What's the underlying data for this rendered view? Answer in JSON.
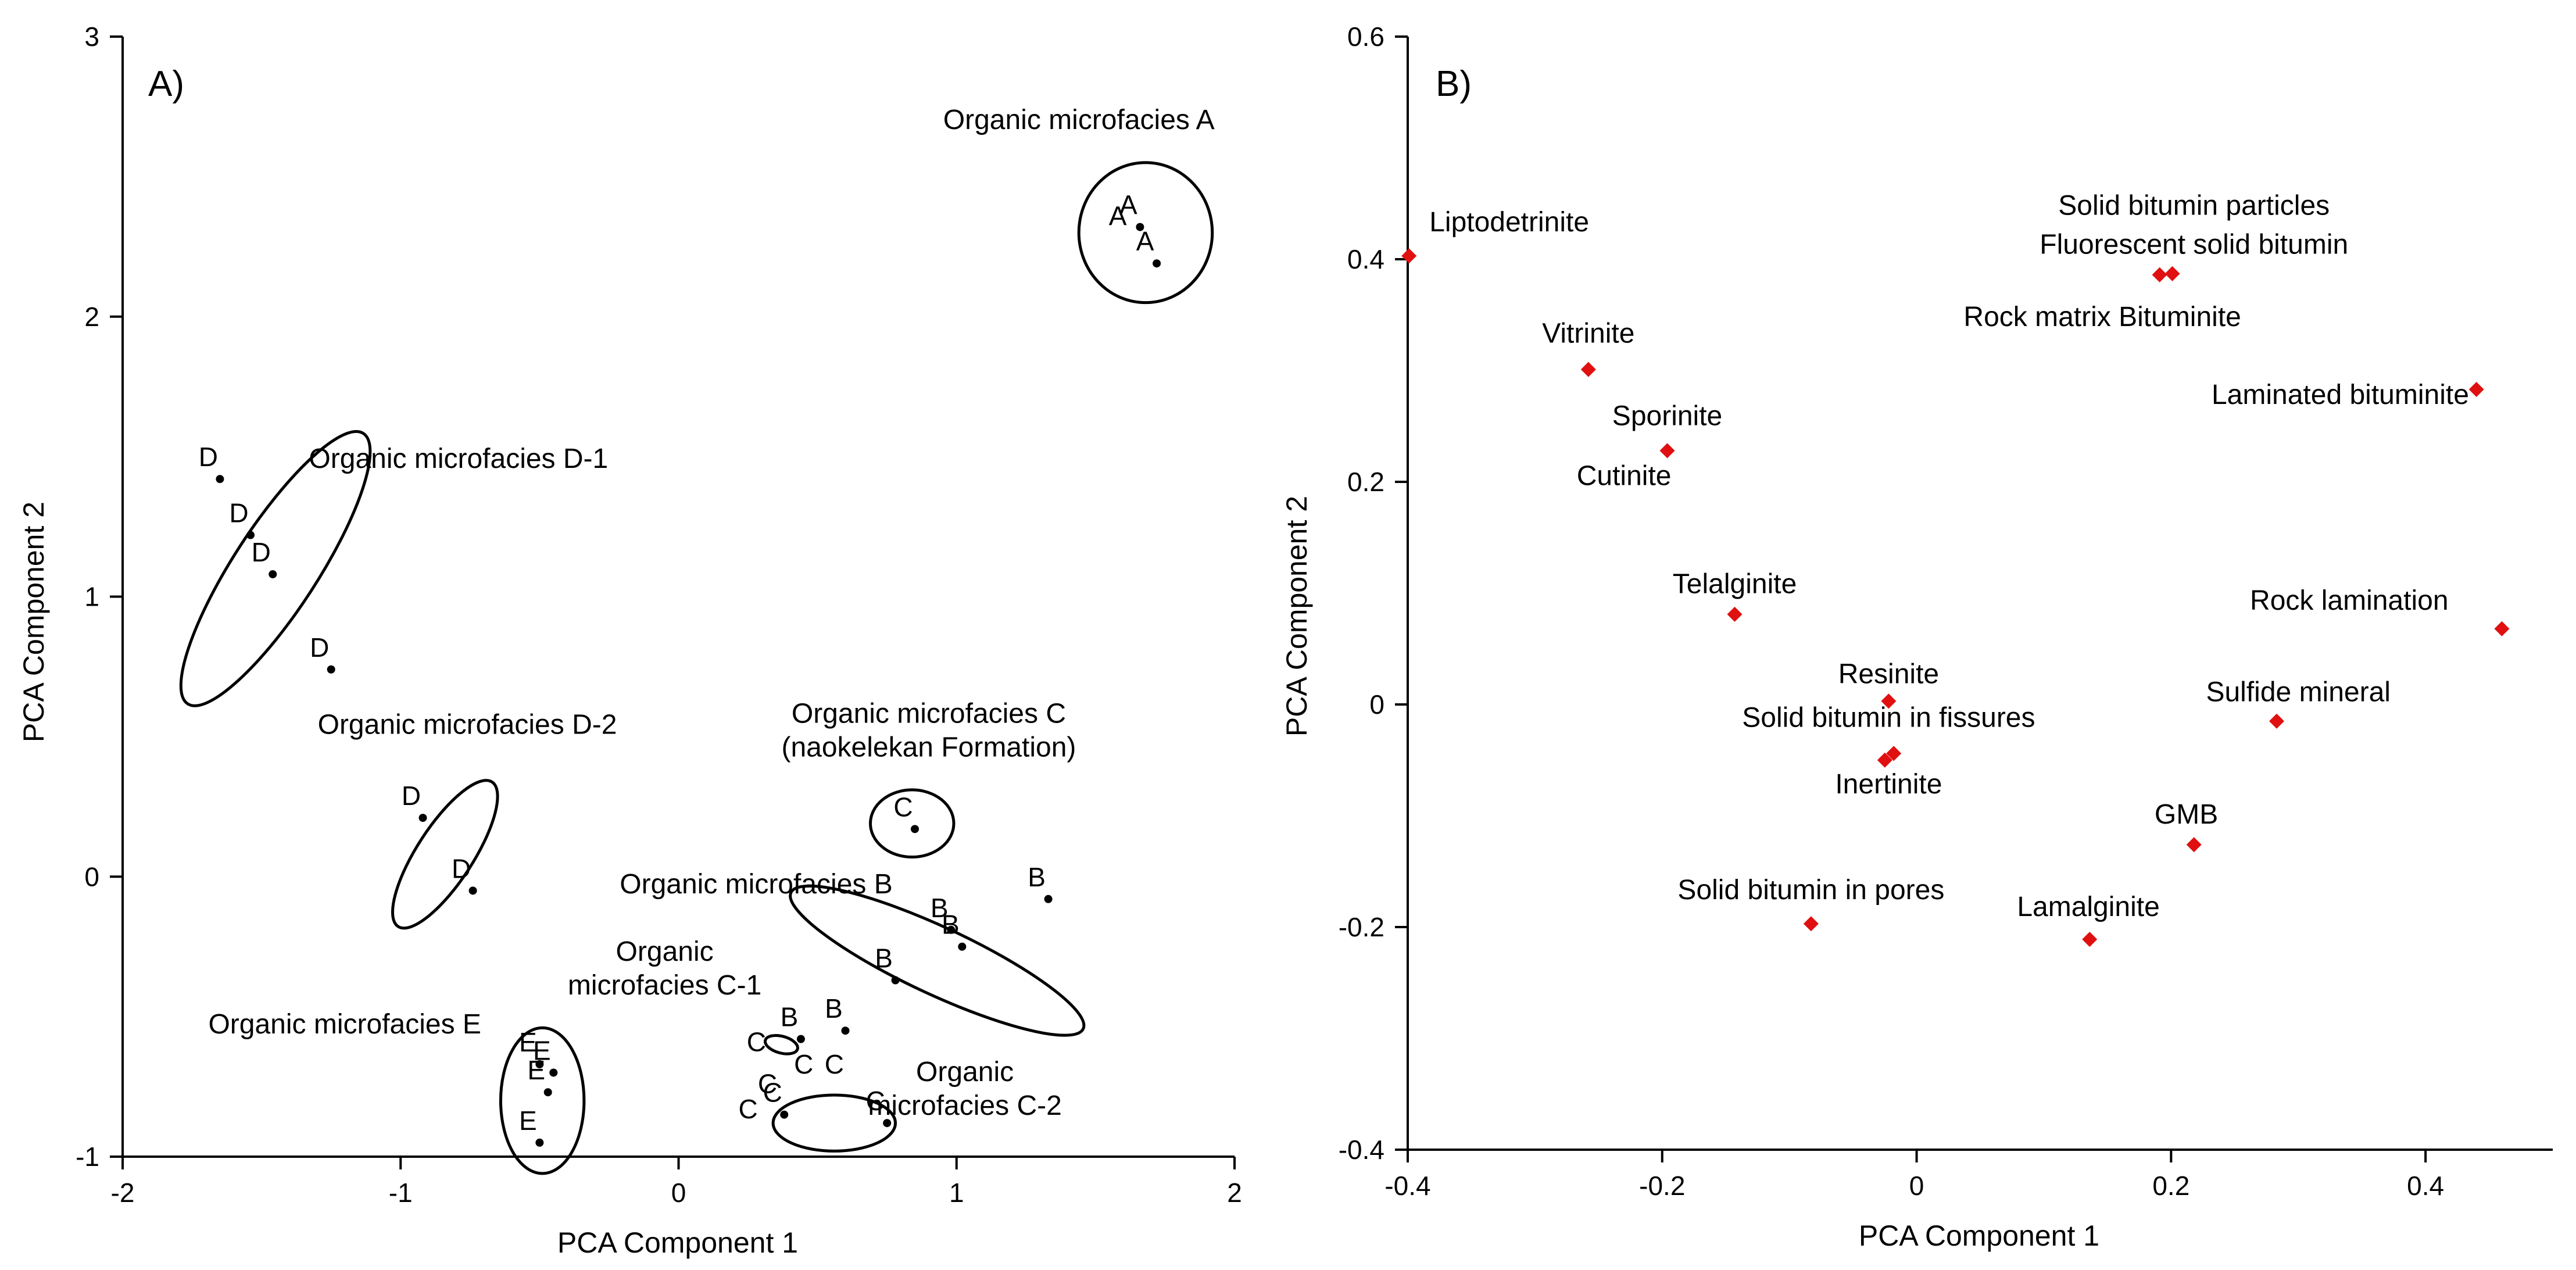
{
  "chart_data": [
    {
      "type": "scatter",
      "panel_label": "A)",
      "xlabel": "PCA Component 1",
      "ylabel": "PCA Component 2",
      "xlim": [
        -2,
        2
      ],
      "ylim": [
        -1,
        3
      ],
      "xticks": [
        "-2",
        "-1",
        "0",
        "1",
        "2"
      ],
      "yticks": [
        "-1",
        "0",
        "1",
        "2",
        "3"
      ],
      "grid": false,
      "point_color": "#000000",
      "points": [
        {
          "label": "A",
          "x": 1.66,
          "y": 2.32
        },
        {
          "label": "A",
          "x": 1.72,
          "y": 2.19
        },
        {
          "label": "D",
          "x": -1.65,
          "y": 1.42
        },
        {
          "label": "D",
          "x": -1.54,
          "y": 1.22
        },
        {
          "label": "D",
          "x": -1.46,
          "y": 1.08
        },
        {
          "label": "D",
          "x": -1.25,
          "y": 0.74
        },
        {
          "label": "D",
          "x": -0.92,
          "y": 0.21
        },
        {
          "label": "D",
          "x": -0.74,
          "y": -0.05
        },
        {
          "label": "C",
          "x": 0.85,
          "y": 0.17
        },
        {
          "label": "B",
          "x": 1.33,
          "y": -0.08
        },
        {
          "label": "B",
          "x": 0.98,
          "y": -0.19
        },
        {
          "label": "B",
          "x": 1.02,
          "y": -0.25
        },
        {
          "label": "B",
          "x": 0.78,
          "y": -0.37
        },
        {
          "label": "B",
          "x": 0.6,
          "y": -0.55
        },
        {
          "label": "B",
          "x": 0.44,
          "y": -0.58
        },
        {
          "label": "E",
          "x": -0.5,
          "y": -0.67
        },
        {
          "label": "E",
          "x": -0.45,
          "y": -0.7
        },
        {
          "label": "E",
          "x": -0.47,
          "y": -0.77
        },
        {
          "label": "E",
          "x": -0.5,
          "y": -0.95
        },
        {
          "label": "C",
          "x": 0.38,
          "y": -0.85
        },
        {
          "label": "C",
          "x": 0.75,
          "y": -0.88
        }
      ],
      "extra_labels": [
        {
          "text": "A",
          "x": 1.58,
          "y": 2.36
        },
        {
          "text": "C",
          "x": 0.28,
          "y": -0.59
        },
        {
          "text": "C",
          "x": 0.45,
          "y": -0.67
        },
        {
          "text": "C",
          "x": 0.56,
          "y": -0.67
        },
        {
          "text": "C",
          "x": 0.32,
          "y": -0.74
        },
        {
          "text": "C",
          "x": 0.25,
          "y": -0.83
        }
      ],
      "groups": [
        {
          "name": "Organic microfacies A",
          "cx": 1.68,
          "cy": 2.3,
          "rx": 0.24,
          "ry": 0.25,
          "angle": 0
        },
        {
          "name": "Organic microfacies D-1",
          "cx": -1.45,
          "cy": 1.1,
          "rx": 0.58,
          "ry": 0.15,
          "angle": 57
        },
        {
          "name": "Organic microfacies D-2",
          "cx": -0.84,
          "cy": 0.08,
          "rx": 0.31,
          "ry": 0.1,
          "angle": 57
        },
        {
          "name": "Organic microfacies C",
          "cx": 0.84,
          "cy": 0.19,
          "rx": 0.15,
          "ry": 0.12,
          "angle": 0
        },
        {
          "name": "Organic microfacies B",
          "cx": 0.93,
          "cy": -0.3,
          "rx": 0.58,
          "ry": 0.12,
          "angle": -25
        },
        {
          "name": "Organic microfacies C-1",
          "cx": 0.37,
          "cy": -0.6,
          "rx": 0.06,
          "ry": 0.03,
          "angle": -15
        },
        {
          "name": "Organic microfacies C-2",
          "cx": 0.56,
          "cy": -0.88,
          "rx": 0.22,
          "ry": 0.1,
          "angle": 0
        },
        {
          "name": "Organic microfacies E",
          "cx": -0.49,
          "cy": -0.8,
          "rx": 0.15,
          "ry": 0.26,
          "angle": 0
        }
      ],
      "annotations": [
        {
          "lines": [
            "Organic microfacies A"
          ],
          "x": 1.44,
          "y": 2.67,
          "anchor": "middle"
        },
        {
          "lines": [
            "Organic microfacies D-1"
          ],
          "x": -1.33,
          "y": 1.46,
          "anchor": "start"
        },
        {
          "lines": [
            "Organic microfacies D-2"
          ],
          "x": -0.76,
          "y": 0.51,
          "anchor": "middle"
        },
        {
          "lines": [
            "Organic microfacies C",
            "(naokelekan Formation)"
          ],
          "x": 0.9,
          "y": 0.55,
          "anchor": "middle"
        },
        {
          "lines": [
            "Organic microfacies B"
          ],
          "x": 0.77,
          "y": -0.06,
          "anchor": "end"
        },
        {
          "lines": [
            "Organic",
            "microfacies C-1"
          ],
          "x": -0.05,
          "y": -0.3,
          "anchor": "middle"
        },
        {
          "lines": [
            "Organic",
            "microfacies C-2"
          ],
          "x": 1.03,
          "y": -0.73,
          "anchor": "middle"
        },
        {
          "lines": [
            "Organic microfacies E"
          ],
          "x": -0.71,
          "y": -0.56,
          "anchor": "end"
        }
      ]
    },
    {
      "type": "scatter",
      "panel_label": "B)",
      "xlabel": "PCA Component 1",
      "ylabel": "PCA Component 2",
      "xlim": [
        -0.4,
        0.5
      ],
      "ylim": [
        -0.4,
        0.6
      ],
      "xticks": [
        "-0.4",
        "-0.2",
        "0",
        "0.2",
        "0.4"
      ],
      "yticks": [
        "-0.4",
        "-0.2",
        "0",
        "0.2",
        "0.4",
        "0.6"
      ],
      "grid": false,
      "point_color": "#e01010",
      "marker": "diamond",
      "points": [
        {
          "x": -0.399,
          "y": 0.403
        },
        {
          "x": -0.258,
          "y": 0.301
        },
        {
          "x": -0.196,
          "y": 0.228
        },
        {
          "x": -0.143,
          "y": 0.081
        },
        {
          "x": -0.022,
          "y": 0.003
        },
        {
          "x": -0.018,
          "y": -0.044
        },
        {
          "x": -0.025,
          "y": -0.05
        },
        {
          "x": -0.083,
          "y": -0.197
        },
        {
          "x": 0.136,
          "y": -0.211
        },
        {
          "x": 0.218,
          "y": -0.126
        },
        {
          "x": 0.283,
          "y": -0.015
        },
        {
          "x": 0.191,
          "y": 0.386
        },
        {
          "x": 0.201,
          "y": 0.387
        },
        {
          "x": 0.44,
          "y": 0.283
        },
        {
          "x": 0.46,
          "y": 0.068
        }
      ],
      "annotations": [
        {
          "lines": [
            "Liptodetrinite"
          ],
          "x": -0.383,
          "y": 0.425,
          "anchor": "start"
        },
        {
          "lines": [
            "Vitrinite"
          ],
          "x": -0.258,
          "y": 0.325,
          "anchor": "middle"
        },
        {
          "lines": [
            "Sporinite"
          ],
          "x": -0.196,
          "y": 0.251,
          "anchor": "middle"
        },
        {
          "lines": [
            "Cutinite"
          ],
          "x": -0.23,
          "y": 0.197,
          "anchor": "middle"
        },
        {
          "lines": [
            "Telalginite"
          ],
          "x": -0.143,
          "y": 0.1,
          "anchor": "middle"
        },
        {
          "lines": [
            "Resinite"
          ],
          "x": -0.022,
          "y": 0.019,
          "anchor": "middle"
        },
        {
          "lines": [
            "Solid bitumin in fissures"
          ],
          "x": -0.022,
          "y": -0.02,
          "anchor": "middle"
        },
        {
          "lines": [
            "Inertinite"
          ],
          "x": -0.022,
          "y": -0.08,
          "anchor": "middle"
        },
        {
          "lines": [
            "Solid bitumin in pores"
          ],
          "x": -0.083,
          "y": -0.175,
          "anchor": "middle"
        },
        {
          "lines": [
            "Lamalginite"
          ],
          "x": 0.135,
          "y": -0.19,
          "anchor": "middle"
        },
        {
          "lines": [
            "GMB"
          ],
          "x": 0.212,
          "y": -0.107,
          "anchor": "middle"
        },
        {
          "lines": [
            "Sulfide mineral"
          ],
          "x": 0.3,
          "y": 0.003,
          "anchor": "middle"
        },
        {
          "lines": [
            "Solid bitumin particles"
          ],
          "x": 0.218,
          "y": 0.44,
          "anchor": "middle"
        },
        {
          "lines": [
            "Fluorescent solid bitumin"
          ],
          "x": 0.218,
          "y": 0.405,
          "anchor": "middle"
        },
        {
          "lines": [
            "Rock matrix Bituminite"
          ],
          "x": 0.146,
          "y": 0.34,
          "anchor": "middle"
        },
        {
          "lines": [
            "Laminated bituminite"
          ],
          "x": 0.333,
          "y": 0.27,
          "anchor": "middle"
        },
        {
          "lines": [
            "Rock lamination"
          ],
          "x": 0.34,
          "y": 0.085,
          "anchor": "middle"
        }
      ]
    }
  ]
}
